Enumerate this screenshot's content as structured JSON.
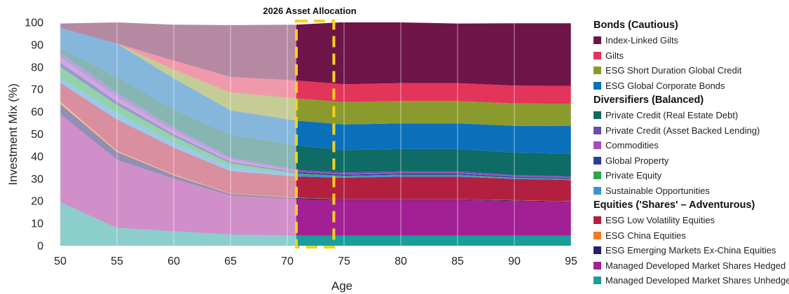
{
  "chart_data": {
    "type": "area",
    "title": "2026 Asset Allocation",
    "xlabel": "Age",
    "ylabel": "Investment Mix (%)",
    "xlim": [
      50,
      95
    ],
    "ylim": [
      0,
      100
    ],
    "x_ticks": [
      50,
      55,
      60,
      65,
      70,
      75,
      80,
      85,
      90,
      95
    ],
    "y_ticks": [
      0,
      10,
      20,
      30,
      40,
      50,
      60,
      70,
      80,
      90,
      100
    ],
    "grid": "vertical",
    "legend_position": "right",
    "highlight": {
      "x_start": 70.8,
      "x_end": 74.1,
      "style": "dashed-yellow-box"
    },
    "faded_before_age": 70.8,
    "x": [
      50,
      55,
      60,
      65,
      70.8,
      75,
      80,
      85,
      90,
      95
    ],
    "series": [
      {
        "name": "Managed Developed Market Shares Unhedged",
        "group": "Equities ('Shares' – Adventurous)",
        "color": "#1a9e9a",
        "values": [
          19.5,
          8,
          6.5,
          5,
          4.5,
          4.5,
          4.5,
          4.5,
          4.5,
          4.5
        ]
      },
      {
        "name": "Managed Developed Market Shares Hedged",
        "group": "Equities ('Shares' – Adventurous)",
        "color": "#a21f94",
        "values": [
          39.5,
          30.5,
          23.5,
          17.5,
          16.3,
          16,
          16,
          16,
          15.5,
          15
        ]
      },
      {
        "name": "ESG Emerging Markets Ex-China Equities",
        "group": "Equities ('Shares' – Adventurous)",
        "color": "#25206b",
        "values": [
          4.5,
          3.5,
          1.5,
          0.7,
          0.5,
          0.3,
          0.3,
          0.3,
          0.3,
          0.3
        ]
      },
      {
        "name": "ESG China Equities",
        "group": "Equities ('Shares' – Adventurous)",
        "color": "#f47b20",
        "values": [
          1,
          0.5,
          0.4,
          0.2,
          0.2,
          0.1,
          0.1,
          0.1,
          0.1,
          0.1
        ]
      },
      {
        "name": "ESG Low Volatility Equities",
        "group": "Equities ('Shares' – Adventurous)",
        "color": "#b31f3f",
        "values": [
          8.5,
          14,
          12,
          10,
          9.5,
          9.5,
          10,
          10,
          9.5,
          9.5
        ]
      },
      {
        "name": "Sustainable Opportunities",
        "group": "Diversifiers (Balanced)",
        "color": "#3a94d0",
        "values": [
          2.5,
          3,
          2.5,
          2,
          1,
          0.6,
          0.6,
          0.6,
          0.4,
          0.3
        ]
      },
      {
        "name": "Private Equity",
        "group": "Diversifiers (Balanced)",
        "color": "#27a84f",
        "values": [
          4.5,
          3.5,
          2.5,
          1.5,
          0.5,
          0.3,
          0.3,
          0.3,
          0.2,
          0.2
        ]
      },
      {
        "name": "Global Property",
        "group": "Diversifiers (Balanced)",
        "color": "#2c3a9e",
        "values": [
          2,
          1.5,
          1,
          0.7,
          0.5,
          0.5,
          0.5,
          0.5,
          0.4,
          0.4
        ]
      },
      {
        "name": "Commodities",
        "group": "Diversifiers (Balanced)",
        "color": "#a94cbf",
        "values": [
          2.5,
          2,
          1.5,
          1,
          0.5,
          0.5,
          0.5,
          0.5,
          0.4,
          0.4
        ]
      },
      {
        "name": "Private Credit (Asset Backed Lending)",
        "group": "Diversifiers (Balanced)",
        "color": "#6a4bb5",
        "values": [
          2,
          2,
          1.5,
          1,
          0.5,
          0.5,
          0.5,
          0.5,
          0.4,
          0.4
        ]
      },
      {
        "name": "Private Credit (Real Estate Debt)",
        "group": "Diversifiers (Balanced)",
        "color": "#0e6b66",
        "values": [
          2,
          7,
          8,
          10,
          11,
          10,
          10,
          10,
          10,
          10
        ]
      },
      {
        "name": "ESG Global Corporate Bonds",
        "group": "Bonds (Cautious)",
        "color": "#0b70bb",
        "values": [
          9,
          15,
          14,
          11,
          11,
          11.5,
          11.5,
          11.5,
          12,
          12.5
        ]
      },
      {
        "name": "ESG Short Duration Global Credit",
        "group": "Bonds (Cautious)",
        "color": "#8b9a2c",
        "values": [
          0,
          0,
          4,
          8,
          10,
          10,
          10,
          10,
          10,
          10
        ]
      },
      {
        "name": "Gilts",
        "group": "Bonds (Cautious)",
        "color": "#e3345a",
        "values": [
          0,
          0,
          4,
          7,
          8,
          8,
          8,
          8,
          8,
          8
        ]
      },
      {
        "name": "Index-Linked Gilts",
        "group": "Bonds (Cautious)",
        "color": "#6e1448",
        "values": [
          2,
          9.5,
          16.1,
          23.2,
          25,
          27.8,
          27.2,
          26.7,
          27.9,
          28
        ]
      }
    ]
  },
  "legend": {
    "groups": [
      {
        "title": "Bonds (Cautious)",
        "items": [
          {
            "label": "Index-Linked Gilts",
            "color": "#6e1448"
          },
          {
            "label": "Gilts",
            "color": "#e3345a"
          },
          {
            "label": "ESG Short Duration Global Credit",
            "color": "#8b9a2c"
          },
          {
            "label": "ESG Global Corporate Bonds",
            "color": "#0b70bb"
          }
        ]
      },
      {
        "title": "Diversifiers (Balanced)",
        "items": [
          {
            "label": "Private Credit (Real Estate Debt)",
            "color": "#0e6b66"
          },
          {
            "label": "Private Credit (Asset Backed Lending)",
            "color": "#6a4bb5"
          },
          {
            "label": "Commodities",
            "color": "#a94cbf"
          },
          {
            "label": "Global Property",
            "color": "#2c3a9e"
          },
          {
            "label": "Private Equity",
            "color": "#27a84f"
          },
          {
            "label": "Sustainable Opportunities",
            "color": "#3a94d0"
          }
        ]
      },
      {
        "title": "Equities ('Shares' – Adventurous)",
        "items": [
          {
            "label": "ESG Low Volatility Equities",
            "color": "#b31f3f"
          },
          {
            "label": "ESG China Equities",
            "color": "#f47b20"
          },
          {
            "label": "ESG Emerging Markets Ex-China Equities",
            "color": "#25206b"
          },
          {
            "label": "Managed Developed Market Shares Hedged",
            "color": "#a21f94"
          },
          {
            "label": "Managed Developed Market Shares Unhedged",
            "color": "#1a9e9a"
          }
        ]
      }
    ]
  }
}
